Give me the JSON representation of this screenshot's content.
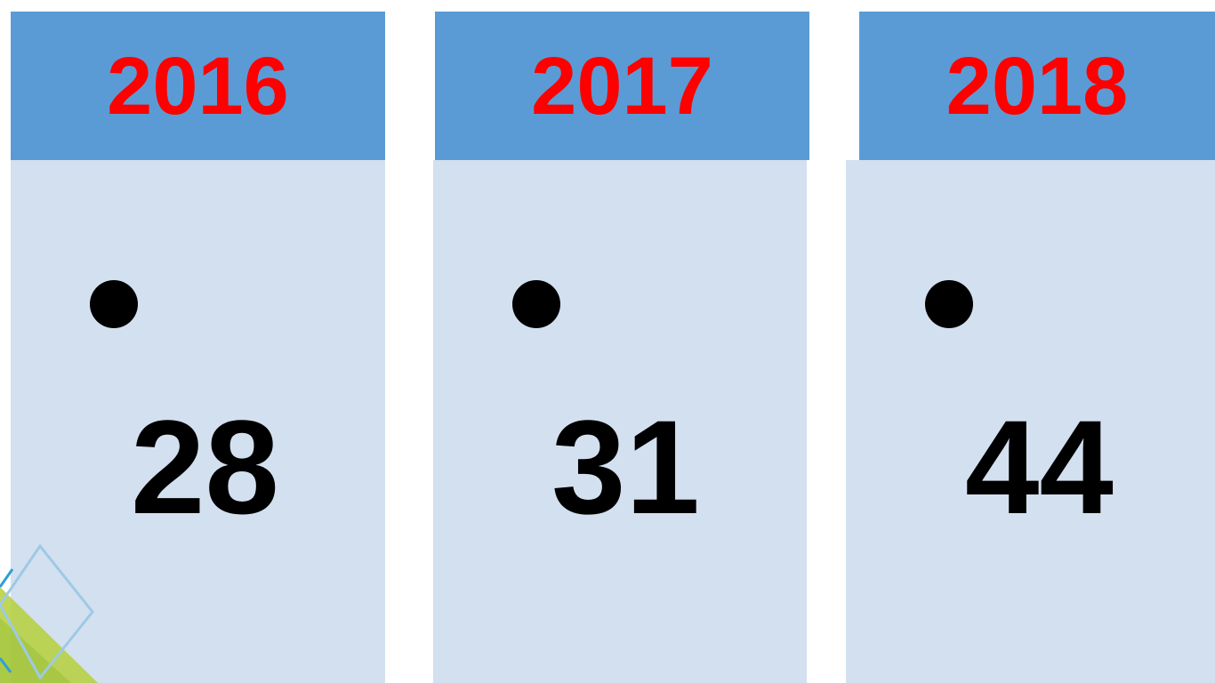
{
  "columns": [
    {
      "year": "2016",
      "value": "28"
    },
    {
      "year": "2017",
      "value": "31"
    },
    {
      "year": "2018",
      "value": "44"
    }
  ]
}
